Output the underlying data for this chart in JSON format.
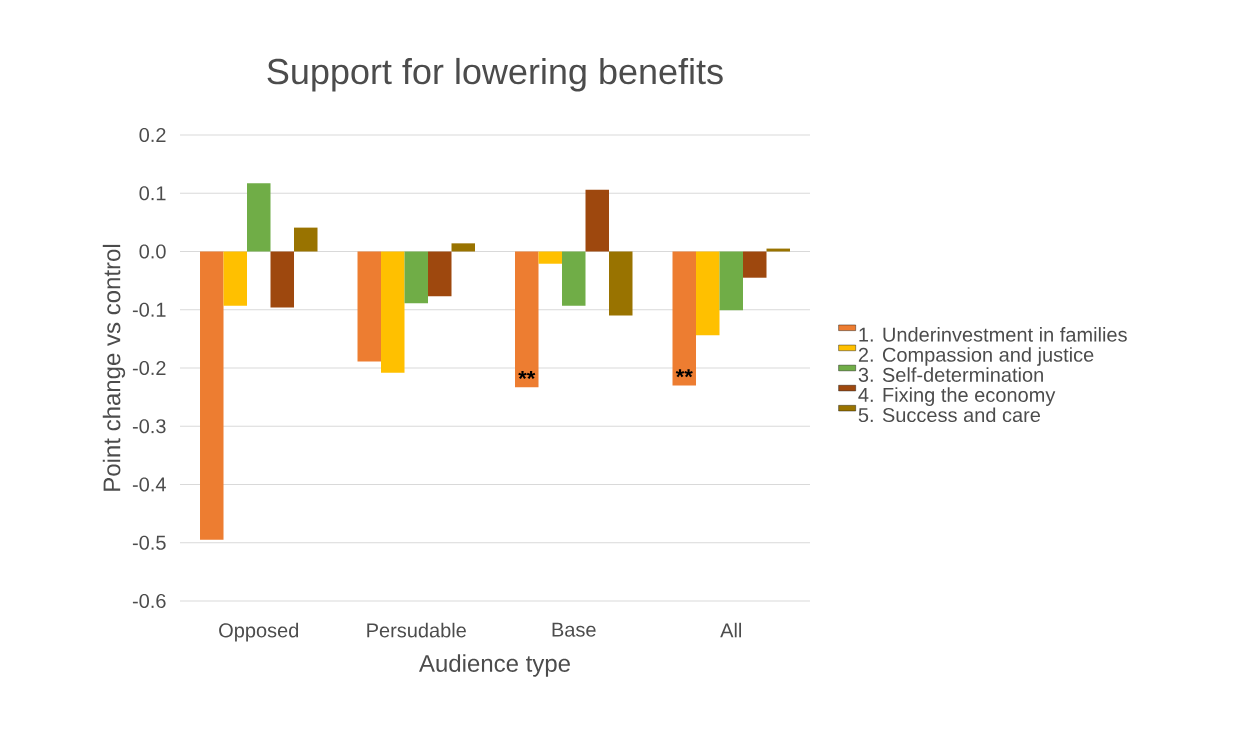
{
  "chart_data": {
    "type": "bar",
    "title": "Support for lowering benefits",
    "xlabel": "Audience type",
    "ylabel": "Point change vs control",
    "categories": [
      "Opposed",
      "Persudable",
      "Base",
      "All"
    ],
    "series": [
      {
        "name": "1. Underinvestment in families",
        "color": "#ed7d31",
        "values": [
          -0.495,
          -0.189,
          -0.233,
          -0.23
        ],
        "value_labels": [
          null,
          null,
          "**",
          "**"
        ]
      },
      {
        "name": "2. Compassion and justice",
        "color": "#ffc000",
        "values": [
          -0.093,
          -0.208,
          -0.021,
          -0.144
        ]
      },
      {
        "name": "3. Self-determination",
        "color": "#70ad47",
        "values": [
          0.117,
          -0.089,
          -0.093,
          -0.101
        ]
      },
      {
        "name": "4. Fixing the economy",
        "color": "#9e480e",
        "values": [
          -0.096,
          -0.077,
          0.106,
          -0.045
        ]
      },
      {
        "name": "5. Success and care",
        "color": "#997300",
        "values": [
          0.041,
          0.014,
          -0.11,
          0.005
        ]
      }
    ],
    "ylim": [
      -0.6,
      0.2
    ],
    "yticks": [
      0.2,
      0.1,
      {
        "value": 0,
        "label": "0.0"
      },
      -0.1,
      -0.2,
      -0.3,
      -0.4,
      -0.5,
      -0.6
    ],
    "grid": "y",
    "legend": "right"
  }
}
